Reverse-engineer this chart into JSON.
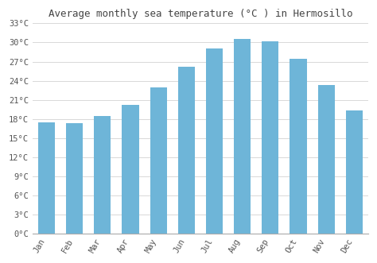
{
  "title": "Average monthly sea temperature (°C ) in Hermosillo",
  "months": [
    "Jan",
    "Feb",
    "Mar",
    "Apr",
    "May",
    "Jun",
    "Jul",
    "Aug",
    "Sep",
    "Oct",
    "Nov",
    "Dec"
  ],
  "values": [
    17.5,
    17.3,
    18.5,
    20.2,
    23.0,
    26.2,
    29.0,
    30.5,
    30.2,
    27.4,
    23.3,
    19.3
  ],
  "bar_color": "#6eb5d8",
  "background_color": "#ffffff",
  "plot_background": "#ffffff",
  "ylim": [
    0,
    33
  ],
  "yticks": [
    0,
    3,
    6,
    9,
    12,
    15,
    18,
    21,
    24,
    27,
    30,
    33
  ],
  "ytick_labels": [
    "0°C",
    "3°C",
    "6°C",
    "9°C",
    "12°C",
    "15°C",
    "18°C",
    "21°C",
    "24°C",
    "27°C",
    "30°C",
    "33°C"
  ],
  "grid_color": "#d8d8d8",
  "title_fontsize": 9,
  "tick_fontsize": 7.5,
  "bar_edge_color": "none",
  "bar_width": 0.6
}
